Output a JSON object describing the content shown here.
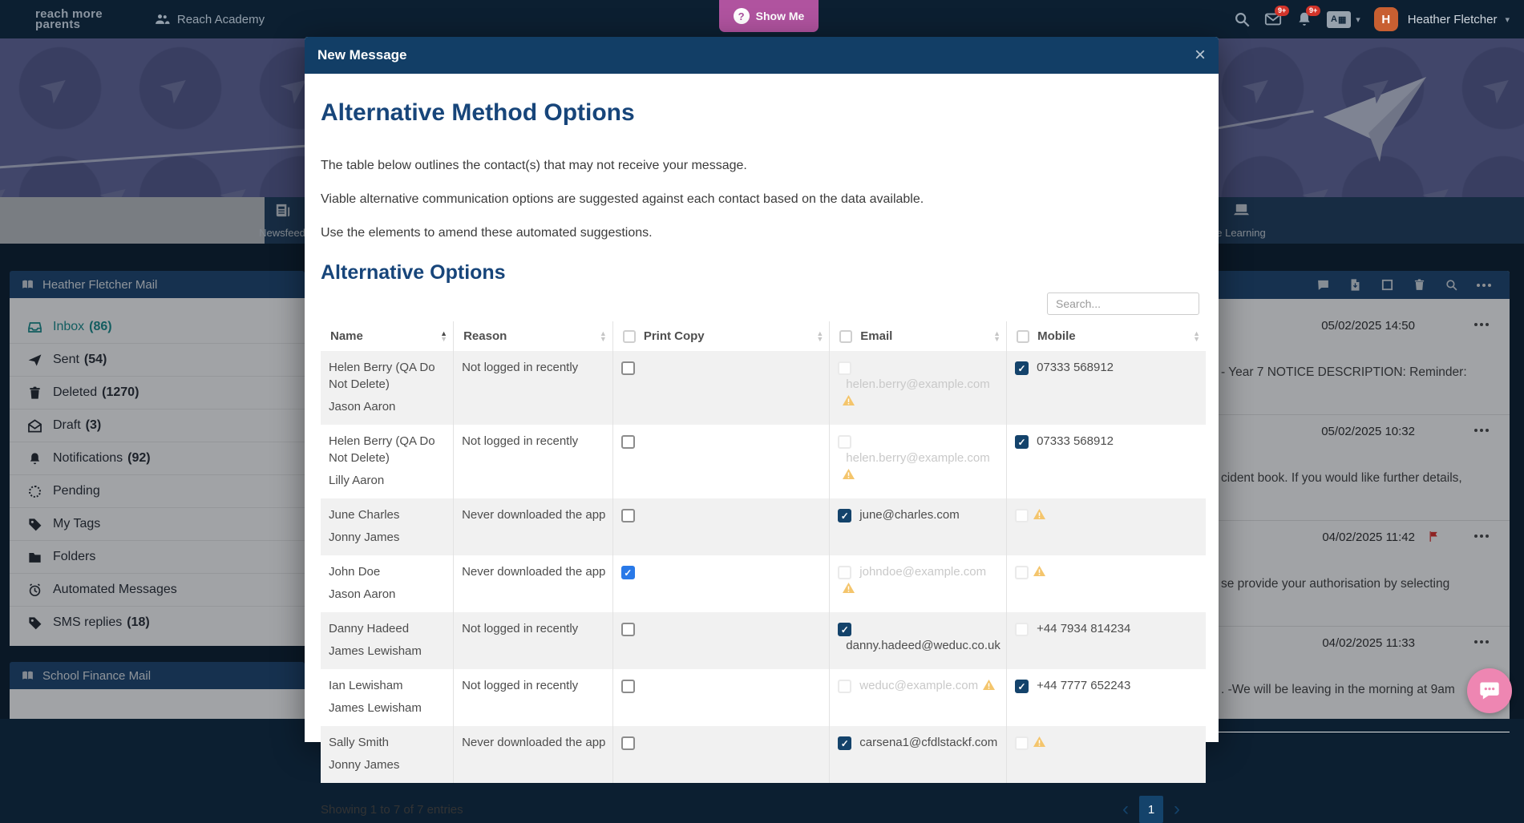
{
  "topbar": {
    "logo_line1": "reach more",
    "logo_line2": "parents",
    "school_name": "Reach Academy",
    "show_me_label": "Show Me",
    "show_me_icon_char": "?",
    "mail_badge": "9+",
    "alerts_badge": "9+",
    "lang_label": "A",
    "user": {
      "initial": "H",
      "name": "Heather Fletcher"
    }
  },
  "tabs": {
    "left_label": "Newsfeed",
    "right_label": "e Learning"
  },
  "sidebar": {
    "title": "Heather Fletcher Mail",
    "secondary_title": "School Finance Mail",
    "items": [
      {
        "icon": "inbox",
        "label": "Inbox",
        "count": "(86)",
        "active": true
      },
      {
        "icon": "send",
        "label": "Sent",
        "count": "(54)",
        "active": false
      },
      {
        "icon": "trash",
        "label": "Deleted",
        "count": "(1270)",
        "active": false
      },
      {
        "icon": "draft",
        "label": "Draft",
        "count": "(3)",
        "active": false
      },
      {
        "icon": "bell",
        "label": "Notifications",
        "count": "(92)",
        "active": false
      },
      {
        "icon": "pending",
        "label": "Pending",
        "count": "",
        "active": false
      },
      {
        "icon": "tag",
        "label": "My Tags",
        "count": "",
        "active": false
      },
      {
        "icon": "folder",
        "label": "Folders",
        "count": "",
        "active": false
      },
      {
        "icon": "clock",
        "label": "Automated Messages",
        "count": "",
        "active": false
      },
      {
        "icon": "tag",
        "label": "SMS replies",
        "count": "(18)",
        "active": false
      }
    ]
  },
  "mail_panel": {
    "items": [
      {
        "date": "05/02/2025 14:50",
        "snippet": "- Year 7 NOTICE DESCRIPTION: Reminder:",
        "flag": false
      },
      {
        "date": "05/02/2025 10:32",
        "snippet": "cident book. If you would like further details,",
        "flag": false
      },
      {
        "date": "04/02/2025 11:42",
        "snippet": "se provide your authorisation by selecting",
        "flag": true
      },
      {
        "date": "04/02/2025 11:33",
        "snippet": ". -We will be leaving in the morning at 9am",
        "flag": false
      }
    ]
  },
  "modal": {
    "title": "New Message",
    "close_label": "×",
    "heading": "Alternative Method Options",
    "paragraphs": [
      "The table below outlines the contact(s) that may not receive your message.",
      "Viable alternative communication options are suggested against each contact based on the data available.",
      "Use the elements to amend these automated suggestions."
    ],
    "subheading": "Alternative Options",
    "search_placeholder": "Search...",
    "table": {
      "columns": [
        {
          "label": "Name",
          "checkbox": false,
          "sort": "asc"
        },
        {
          "label": "Reason",
          "checkbox": false,
          "sort": "both"
        },
        {
          "label": "Print Copy",
          "checkbox": true,
          "sort": "both"
        },
        {
          "label": "Email",
          "checkbox": true,
          "sort": "both"
        },
        {
          "label": "Mobile",
          "checkbox": true,
          "sort": "both"
        }
      ],
      "rows": [
        {
          "name": "Helen Berry (QA Do Not Delete)",
          "sub": "Jason Aaron",
          "reason": "Not logged in recently",
          "print": {
            "state": "un"
          },
          "email": {
            "state": "dis",
            "text": "helen.berry@example.com",
            "faded": true,
            "warning": true
          },
          "mobile": {
            "state": "chk",
            "text": "07333 568912",
            "faded": false,
            "warning": false
          }
        },
        {
          "name": "Helen Berry (QA Do Not Delete)",
          "sub": "Lilly Aaron",
          "reason": "Not logged in recently",
          "print": {
            "state": "un"
          },
          "email": {
            "state": "dis",
            "text": "helen.berry@example.com",
            "faded": true,
            "warning": true
          },
          "mobile": {
            "state": "chk",
            "text": "07333 568912",
            "faded": false,
            "warning": false
          }
        },
        {
          "name": "June Charles",
          "sub": "Jonny James",
          "reason": "Never downloaded the app",
          "print": {
            "state": "un"
          },
          "email": {
            "state": "chk",
            "text": "june@charles.com",
            "faded": false,
            "warning": false
          },
          "mobile": {
            "state": "dis",
            "text": "",
            "faded": false,
            "warning": true
          }
        },
        {
          "name": "John Doe",
          "sub": "Jason Aaron",
          "reason": "Never downloaded the app",
          "print": {
            "state": "ntv"
          },
          "email": {
            "state": "dis",
            "text": "johndoe@example.com",
            "faded": true,
            "warning": true
          },
          "mobile": {
            "state": "dis",
            "text": "",
            "faded": false,
            "warning": true
          }
        },
        {
          "name": "Danny Hadeed",
          "sub": "James Lewisham",
          "reason": "Not logged in recently",
          "print": {
            "state": "un"
          },
          "email": {
            "state": "chk",
            "text": "danny.hadeed@weduc.co.uk",
            "faded": false,
            "warning": false
          },
          "mobile": {
            "state": "dis",
            "text": "+44 7934 814234",
            "faded": false,
            "warning": false
          }
        },
        {
          "name": "Ian Lewisham",
          "sub": "James Lewisham",
          "reason": "Not logged in recently",
          "print": {
            "state": "un"
          },
          "email": {
            "state": "dis",
            "text": "weduc@example.com",
            "faded": true,
            "warning": true
          },
          "mobile": {
            "state": "chk",
            "text": "+44 7777 652243",
            "faded": false,
            "warning": false
          }
        },
        {
          "name": "Sally Smith",
          "sub": "Jonny James",
          "reason": "Never downloaded the app",
          "print": {
            "state": "un"
          },
          "email": {
            "state": "chk",
            "text": "carsena1@cfdlstackf.com",
            "faded": false,
            "warning": false
          },
          "mobile": {
            "state": "dis",
            "text": "",
            "faded": false,
            "warning": true
          }
        }
      ]
    },
    "footer": {
      "summary": "Showing 1 to 7 of 7 entries",
      "prev": "‹",
      "page": "1",
      "next": "›"
    }
  },
  "colors": {
    "topbar_bg": "#0c1f31",
    "modal_header_bg": "#123e66",
    "heading_navy": "#17457a",
    "panel_band_bg": "#1f4773",
    "inbox_teal": "#1a8f8f",
    "badge_red": "#d2342a",
    "show_me_purple": "#b0539f",
    "avatar_orange": "#c85f31",
    "checked_navy": "#14436b",
    "native_checkbox_blue": "#2979e8",
    "warning_amber": "#f4c56c",
    "chat_pink": "#ee86b2"
  }
}
